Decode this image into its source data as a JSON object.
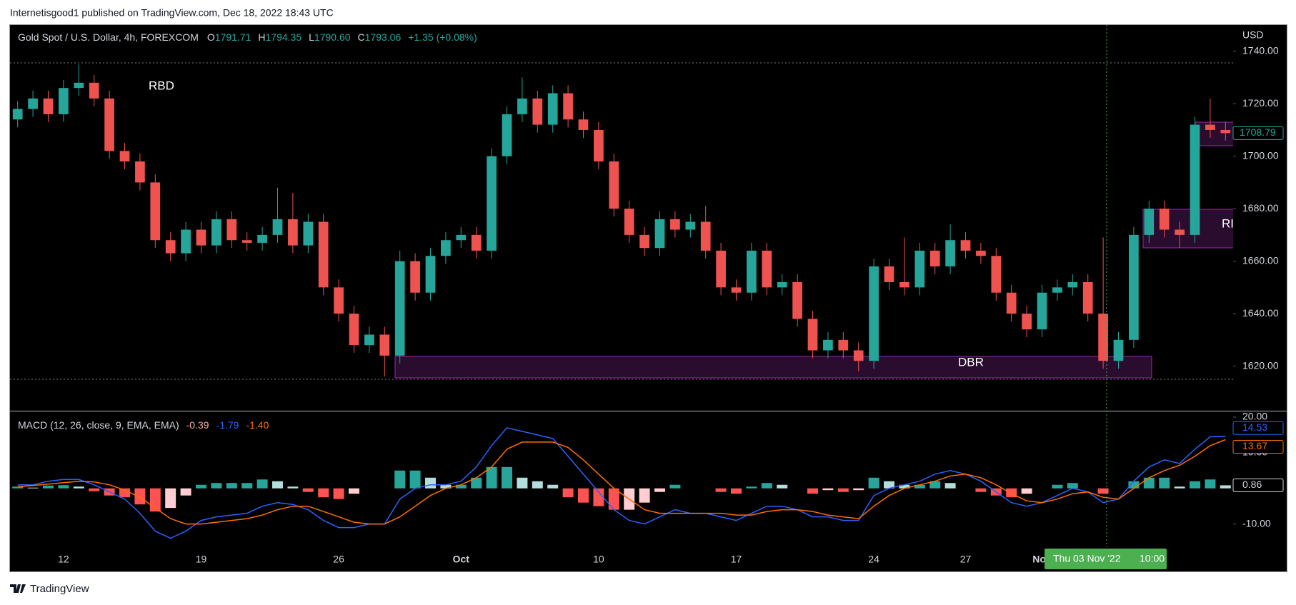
{
  "attribution": "Internetisgood1 published on TradingView.com, Dec 18, 2022 18:43 UTC",
  "footer": "TradingView",
  "crosshair_label": [
    "Thu 03 Nov '22",
    "10:00"
  ],
  "chart_data": [
    {
      "type": "candlestick",
      "title": "Gold Spot / U.S. Dollar, 4h, FOREXCOM",
      "ohlc": [
        {
          "label": "O",
          "value": "1791.71"
        },
        {
          "label": "H",
          "value": "1794.35"
        },
        {
          "label": "L",
          "value": "1790.60"
        },
        {
          "label": "C",
          "value": "1793.06"
        }
      ],
      "change": "+1.35 (+0.08%)",
      "ylabel": "USD",
      "annotations": [
        "RBD",
        "DBR",
        "RI"
      ],
      "up_color": "#26a69a",
      "down_color": "#ef5350",
      "categories": [
        null,
        null,
        null,
        "12",
        null,
        null,
        null,
        null,
        null,
        null,
        null,
        null,
        "19",
        null,
        null,
        null,
        null,
        null,
        null,
        null,
        null,
        "26",
        null,
        null,
        null,
        null,
        null,
        null,
        null,
        "Oct",
        null,
        null,
        null,
        null,
        null,
        null,
        null,
        null,
        "10",
        null,
        null,
        null,
        null,
        null,
        null,
        null,
        null,
        "17",
        null,
        null,
        null,
        null,
        null,
        null,
        null,
        null,
        "24",
        null,
        null,
        null,
        null,
        null,
        "27",
        null,
        null,
        null,
        null,
        "Nov",
        null,
        null,
        null,
        null,
        null,
        null,
        null,
        null,
        null,
        null,
        null,
        null
      ],
      "open": [
        1714,
        1718,
        1722,
        1716,
        1726,
        1728,
        1722,
        1702,
        1698,
        1690,
        1668,
        1663,
        1672,
        1666,
        1676,
        1668,
        1667,
        1670,
        1676,
        1666,
        1675,
        1650,
        1640,
        1628,
        1632,
        1624,
        1660,
        1648,
        1662,
        1668,
        1670,
        1664,
        1700,
        1716,
        1722,
        1712,
        1724,
        1714,
        1710,
        1698,
        1680,
        1670,
        1665,
        1676,
        1672,
        1675,
        1664,
        1650,
        1648,
        1664,
        1650,
        1652,
        1638,
        1626,
        1630,
        1626,
        1622,
        1658,
        1652,
        1650,
        1664,
        1658,
        1668,
        1664,
        1662,
        1648,
        1640,
        1634,
        1648,
        1650,
        1652,
        1640,
        1622,
        1630,
        1670,
        1680,
        1672,
        1670,
        1712,
        1710
      ],
      "high": [
        1721,
        1725,
        1725,
        1729,
        1735,
        1731,
        1725,
        1705,
        1701,
        1693,
        1671,
        1675,
        1675,
        1679,
        1679,
        1671,
        1673,
        1688,
        1686,
        1678,
        1678,
        1653,
        1643,
        1635,
        1635,
        1664,
        1663,
        1665,
        1671,
        1673,
        1673,
        1703,
        1719,
        1730,
        1725,
        1727,
        1727,
        1717,
        1713,
        1701,
        1683,
        1673,
        1679,
        1679,
        1678,
        1681,
        1667,
        1653,
        1667,
        1667,
        1655,
        1655,
        1641,
        1633,
        1633,
        1629,
        1661,
        1661,
        1669,
        1667,
        1667,
        1674,
        1671,
        1667,
        1665,
        1651,
        1643,
        1651,
        1653,
        1655,
        1655,
        1669,
        1633,
        1673,
        1683,
        1683,
        1675,
        1715,
        1722,
        1713
      ],
      "low": [
        1711,
        1715,
        1713,
        1713,
        1723,
        1719,
        1699,
        1695,
        1687,
        1665,
        1660,
        1660,
        1663,
        1663,
        1665,
        1664,
        1664,
        1667,
        1663,
        1663,
        1647,
        1637,
        1625,
        1625,
        1616,
        1621,
        1645,
        1645,
        1659,
        1665,
        1661,
        1661,
        1697,
        1713,
        1709,
        1709,
        1711,
        1707,
        1695,
        1677,
        1667,
        1662,
        1662,
        1669,
        1669,
        1661,
        1647,
        1645,
        1645,
        1647,
        1647,
        1635,
        1623,
        1623,
        1623,
        1618,
        1619,
        1649,
        1647,
        1647,
        1655,
        1655,
        1661,
        1659,
        1645,
        1637,
        1631,
        1631,
        1645,
        1647,
        1637,
        1619,
        1619,
        1627,
        1667,
        1669,
        1665,
        1667,
        1707,
        1706
      ],
      "close": [
        1718,
        1722,
        1716,
        1726,
        1728,
        1722,
        1702,
        1698,
        1690,
        1668,
        1663,
        1672,
        1666,
        1676,
        1668,
        1667,
        1670,
        1676,
        1666,
        1675,
        1650,
        1640,
        1628,
        1632,
        1624,
        1660,
        1648,
        1662,
        1668,
        1670,
        1664,
        1700,
        1716,
        1722,
        1712,
        1724,
        1714,
        1710,
        1698,
        1680,
        1670,
        1665,
        1676,
        1672,
        1675,
        1664,
        1650,
        1648,
        1664,
        1650,
        1652,
        1638,
        1626,
        1630,
        1626,
        1622,
        1658,
        1652,
        1650,
        1664,
        1658,
        1668,
        1664,
        1662,
        1648,
        1640,
        1634,
        1648,
        1650,
        1652,
        1640,
        1622,
        1630,
        1670,
        1680,
        1672,
        1670,
        1712,
        1710,
        1708.79
      ],
      "ylim": [
        1603,
        1750
      ],
      "yticks": [
        {
          "value": 1620,
          "label": "1620.00"
        },
        {
          "value": 1640,
          "label": "1640.00"
        },
        {
          "value": 1660,
          "label": "1660.00"
        },
        {
          "value": 1680,
          "label": "1680.00"
        },
        {
          "value": 1700,
          "label": "1700.00"
        },
        {
          "value": 1720,
          "label": "1720.00"
        },
        {
          "value": 1740,
          "label": "1740.00"
        }
      ]
    },
    {
      "type": "macd",
      "title": "MACD (12, 26, close, 9, EMA, EMA)",
      "header_values": [
        "-0.39",
        "-1.79",
        "-1.40"
      ],
      "header_colors": [
        "#f7a9a8",
        "#2962ff",
        "#ff6d00"
      ],
      "series": [
        {
          "color": "#2962ff",
          "values": [
            1,
            1,
            2,
            2.5,
            2.5,
            1,
            -1,
            -3,
            -7,
            -12,
            -14,
            -12,
            -9,
            -8,
            -7.5,
            -7,
            -5,
            -4,
            -4.5,
            -6,
            -9,
            -11,
            -11,
            -10,
            -10,
            -3,
            0,
            1,
            1,
            2,
            6,
            12,
            17,
            16,
            15,
            14,
            9,
            4,
            -1,
            -6,
            -9,
            -10,
            -8,
            -6,
            -7,
            -7,
            -8,
            -9,
            -7,
            -5,
            -5,
            -6,
            -8,
            -8,
            -9,
            -9,
            -2,
            0,
            1,
            2,
            4,
            5,
            4,
            2,
            -1,
            -4,
            -5,
            -4,
            -2,
            0,
            -1,
            -4,
            -3,
            2,
            6,
            8,
            7,
            11,
            14.5,
            14.53
          ]
        },
        {
          "color": "#ff6d00",
          "values": [
            0.5,
            0.8,
            1.2,
            1.6,
            2,
            1.8,
            1,
            -0.5,
            -2.5,
            -5.5,
            -8.5,
            -10,
            -10,
            -9.5,
            -9,
            -8.5,
            -7.5,
            -6,
            -5,
            -5,
            -6.5,
            -8,
            -9.5,
            -10,
            -10,
            -8,
            -5,
            -2,
            0,
            1,
            3,
            6,
            11,
            13,
            13,
            13,
            11.5,
            8,
            4,
            0,
            -3,
            -6,
            -7,
            -7,
            -7,
            -7,
            -7,
            -7.5,
            -7.5,
            -6.5,
            -6,
            -6,
            -6.5,
            -7.5,
            -8,
            -8.5,
            -5,
            -2,
            0,
            1,
            2,
            3.5,
            4,
            3,
            1,
            -1.5,
            -3.5,
            -4,
            -3,
            -1.5,
            -1,
            -2.5,
            -3,
            0,
            3,
            5,
            6.5,
            9,
            12,
            13.67
          ]
        }
      ],
      "histogram": [
        0.5,
        0.2,
        0.8,
        0.9,
        0.5,
        -0.8,
        -2,
        -2.5,
        -4.5,
        -6.5,
        -5.5,
        -2,
        1,
        1.5,
        1.5,
        1.5,
        2.5,
        2,
        0.5,
        -1,
        -2.5,
        -3,
        -1.5,
        0,
        0,
        5,
        5,
        3,
        1,
        1,
        3,
        6,
        6,
        3,
        2,
        1,
        -2.5,
        -4,
        -5,
        -6,
        -6,
        -4,
        -1,
        1,
        0,
        0,
        -1,
        -1.5,
        0.5,
        1.5,
        1,
        0,
        -1.5,
        -0.5,
        -1,
        -0.5,
        3,
        2,
        1,
        1,
        2,
        1.5,
        0,
        -1,
        -2,
        -2.5,
        -1.5,
        0,
        1,
        1.5,
        0,
        -1.5,
        0,
        2,
        3,
        3,
        0.5,
        2,
        2.5,
        0.86
      ],
      "histogram_colors": [
        "#26a69a",
        "#b2dfdb",
        "#ffcdd2",
        "#ff5252"
      ],
      "ylim": [
        -16.5,
        21.8
      ],
      "yticks": [
        {
          "value": -10,
          "label": "-10.00"
        },
        {
          "value": 10,
          "label": "10.00"
        },
        {
          "value": 20,
          "label": "20.00"
        }
      ]
    }
  ]
}
